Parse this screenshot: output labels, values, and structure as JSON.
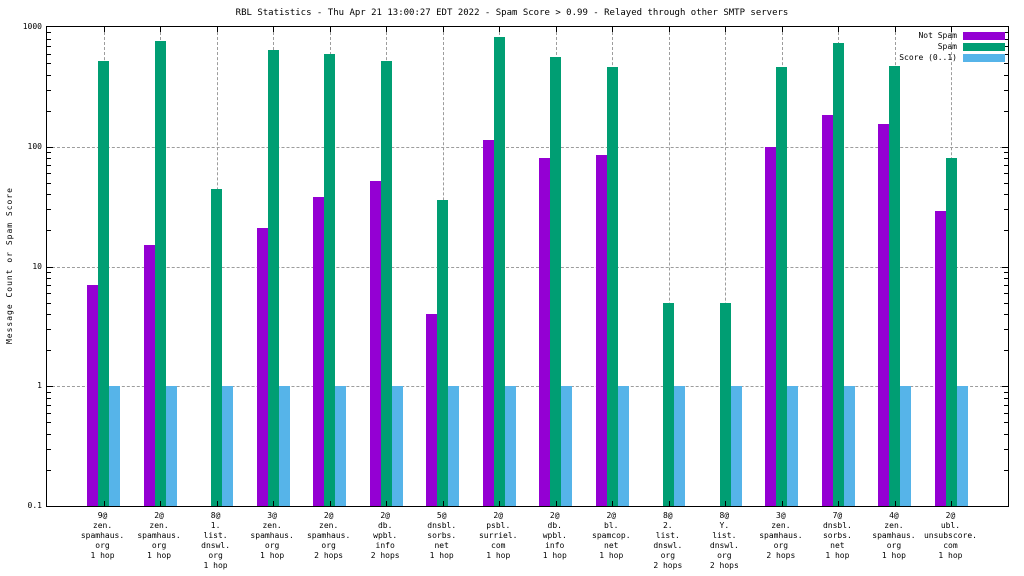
{
  "title": "RBL Statistics - Thu Apr 21 13:00:27 EDT 2022 - Spam Score > 0.99 - Relayed through other SMTP servers",
  "y_axis": {
    "label": "Message Count or Spam Score",
    "tick_labels": [
      "1000",
      "100",
      "10",
      "1",
      "0.1"
    ],
    "tick_values": [
      1000,
      100,
      10,
      1,
      0.1
    ]
  },
  "legend": {
    "position": "top-right",
    "items": [
      {
        "label": "Not Spam",
        "color": "#9400D3"
      },
      {
        "label": "Spam",
        "color": "#009E73"
      },
      {
        "label": "Score (0..1)",
        "color": "#56B4E9"
      }
    ]
  },
  "chart_data": {
    "type": "bar",
    "y_scale": "log",
    "ylim": [
      0.1,
      1000
    ],
    "grid": true,
    "legend_position": "top-right",
    "title": "RBL Statistics - Thu Apr 21 13:00:27 EDT 2022 - Spam Score > 0.99 - Relayed through other SMTP servers",
    "ylabel": "Message Count or Spam Score",
    "categories": [
      [
        "9@",
        "zen.",
        "spamhaus.",
        "org",
        "1 hop"
      ],
      [
        "2@",
        "zen.",
        "spamhaus.",
        "org",
        "1 hop"
      ],
      [
        "8@",
        "1.",
        "list.",
        "dnswl.",
        "org",
        "1 hop"
      ],
      [
        "3@",
        "zen.",
        "spamhaus.",
        "org",
        "1 hop"
      ],
      [
        "2@",
        "zen.",
        "spamhaus.",
        "org",
        "2 hops"
      ],
      [
        "2@",
        "db.",
        "wpbl.",
        "info",
        "2 hops"
      ],
      [
        "5@",
        "dnsbl.",
        "sorbs.",
        "net",
        "1 hop"
      ],
      [
        "2@",
        "psbl.",
        "surriel.",
        "com",
        "1 hop"
      ],
      [
        "2@",
        "db.",
        "wpbl.",
        "info",
        "1 hop"
      ],
      [
        "2@",
        "bl.",
        "spamcop.",
        "net",
        "1 hop"
      ],
      [
        "8@",
        "2.",
        "list.",
        "dnswl.",
        "org",
        "2 hops"
      ],
      [
        "8@",
        "Y.",
        "list.",
        "dnswl.",
        "org",
        "2 hops"
      ],
      [
        "3@",
        "zen.",
        "spamhaus.",
        "org",
        "2 hops"
      ],
      [
        "7@",
        "dnsbl.",
        "sorbs.",
        "net",
        "1 hop"
      ],
      [
        "4@",
        "zen.",
        "spamhaus.",
        "org",
        "1 hop"
      ],
      [
        "2@",
        "ubl.",
        "unsubscore.",
        "com",
        "1 hop"
      ]
    ],
    "series": [
      {
        "name": "Not Spam",
        "color": "#9400D3",
        "values": [
          7,
          15,
          null,
          21,
          38,
          52,
          4,
          113,
          80,
          86,
          null,
          null,
          100,
          185,
          155,
          29
        ]
      },
      {
        "name": "Spam",
        "color": "#009E73",
        "values": [
          520,
          760,
          44,
          640,
          600,
          520,
          36,
          820,
          560,
          460,
          5,
          5,
          460,
          730,
          470,
          80
        ]
      },
      {
        "name": "Score (0..1)",
        "color": "#56B4E9",
        "values": [
          1,
          1,
          1,
          1,
          1,
          1,
          1,
          1,
          1,
          1,
          1,
          1,
          1,
          1,
          1,
          1
        ]
      }
    ]
  }
}
